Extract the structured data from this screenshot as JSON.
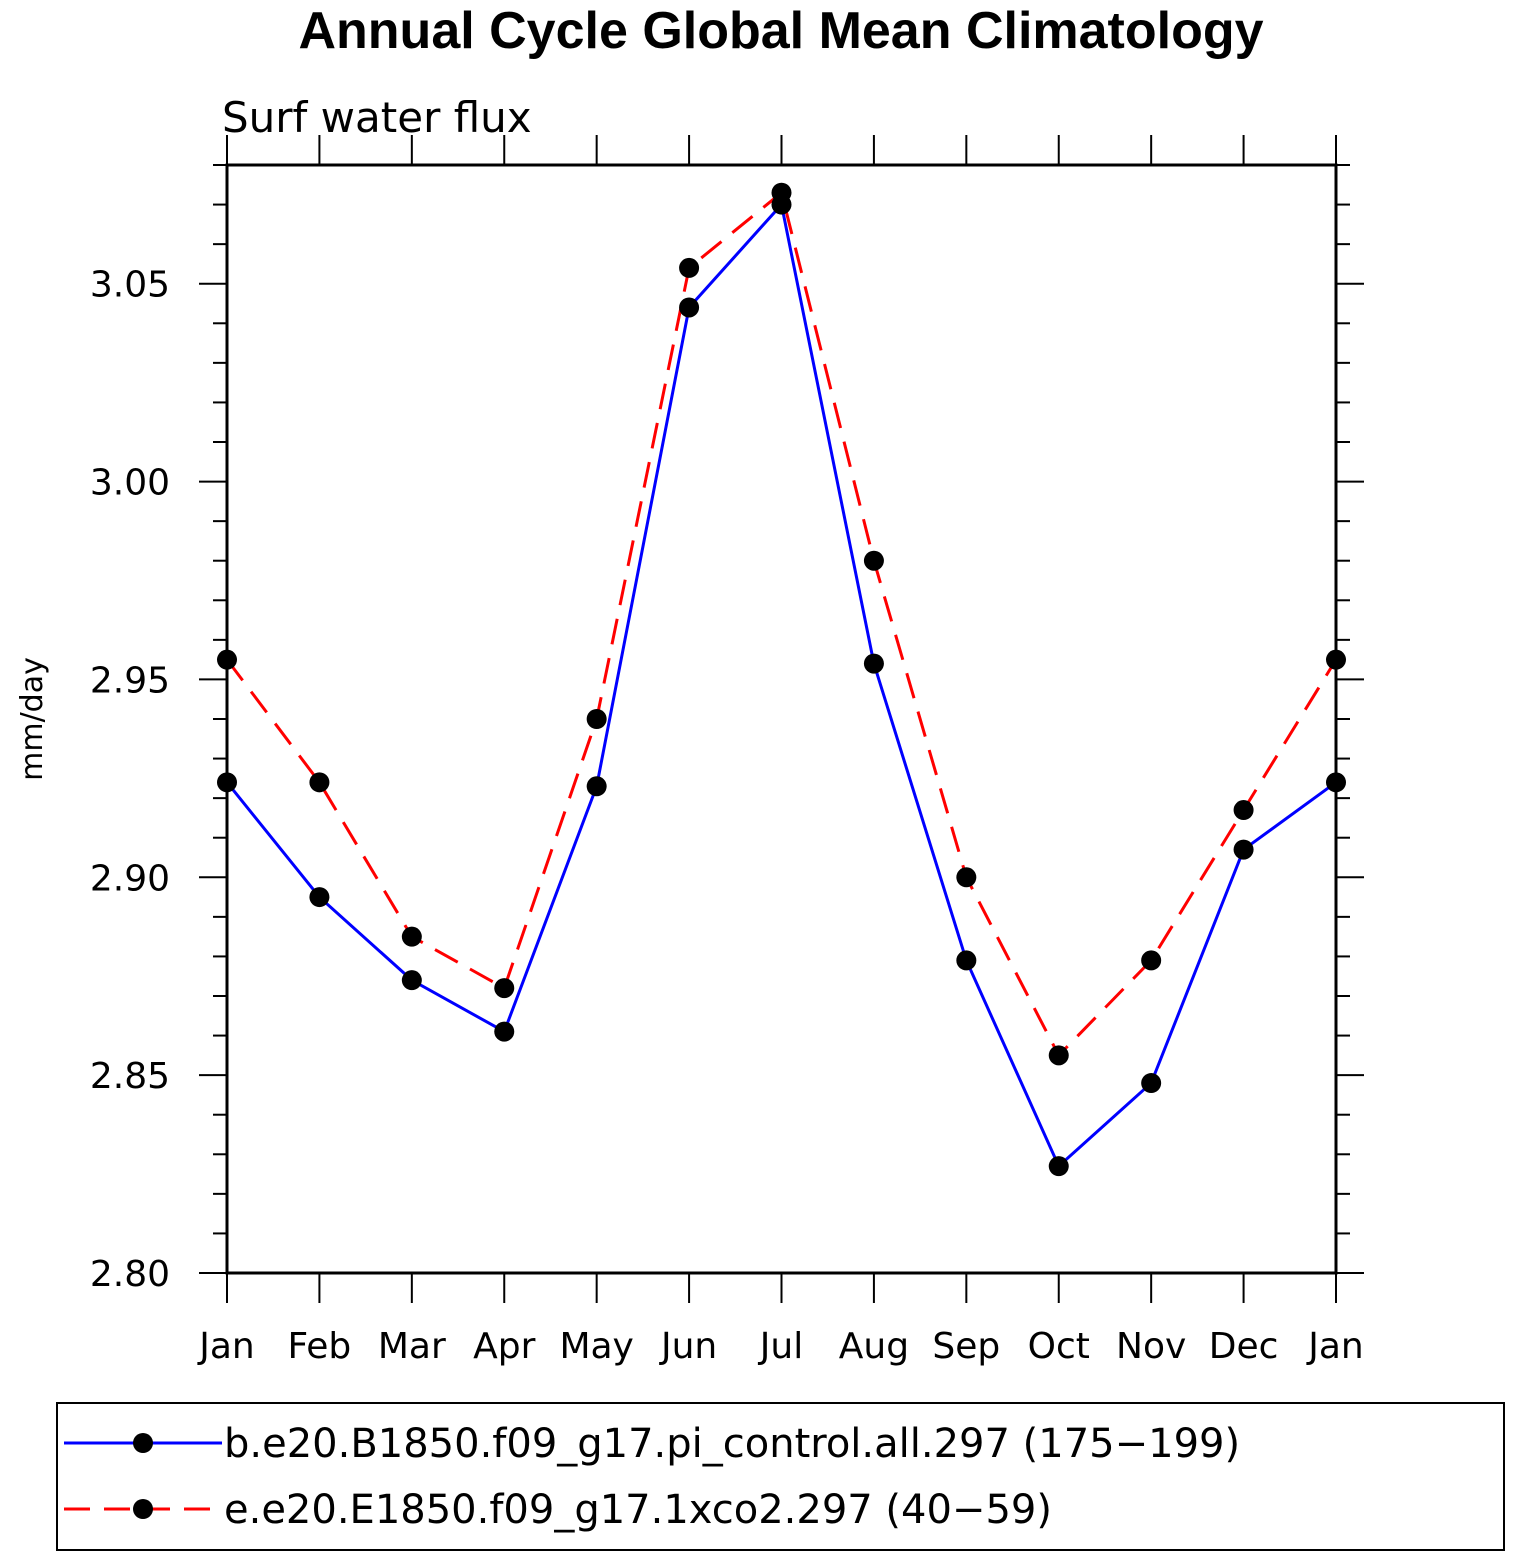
{
  "chart_data": {
    "type": "line",
    "title": "Annual Cycle Global Mean Climatology",
    "subtitle": "Surf water flux",
    "xlabel": "",
    "ylabel": "mm/day",
    "ylim": [
      2.8,
      3.08
    ],
    "yticks": [
      "2.80",
      "2.85",
      "2.90",
      "2.95",
      "3.00",
      "3.05"
    ],
    "categories": [
      "Jan",
      "Feb",
      "Mar",
      "Apr",
      "May",
      "Jun",
      "Jul",
      "Aug",
      "Sep",
      "Oct",
      "Nov",
      "Dec",
      "Jan"
    ],
    "series": [
      {
        "name": "b.e20.B1850.f09_g17.pi_control.all.297 (175−199)",
        "color": "#0000ff",
        "dash": "solid",
        "marker": "filled-circle",
        "values": [
          2.924,
          2.895,
          2.874,
          2.861,
          2.923,
          3.044,
          3.07,
          2.954,
          2.879,
          2.827,
          2.848,
          2.907,
          2.924
        ]
      },
      {
        "name": "e.e20.E1850.f09_g17.1xco2.297 (40−59)",
        "color": "#ff0000",
        "dash": "dashed",
        "marker": "filled-circle",
        "values": [
          2.955,
          2.924,
          2.885,
          2.872,
          2.94,
          3.054,
          3.073,
          2.98,
          2.9,
          2.855,
          2.879,
          2.917,
          2.955
        ]
      }
    ]
  }
}
